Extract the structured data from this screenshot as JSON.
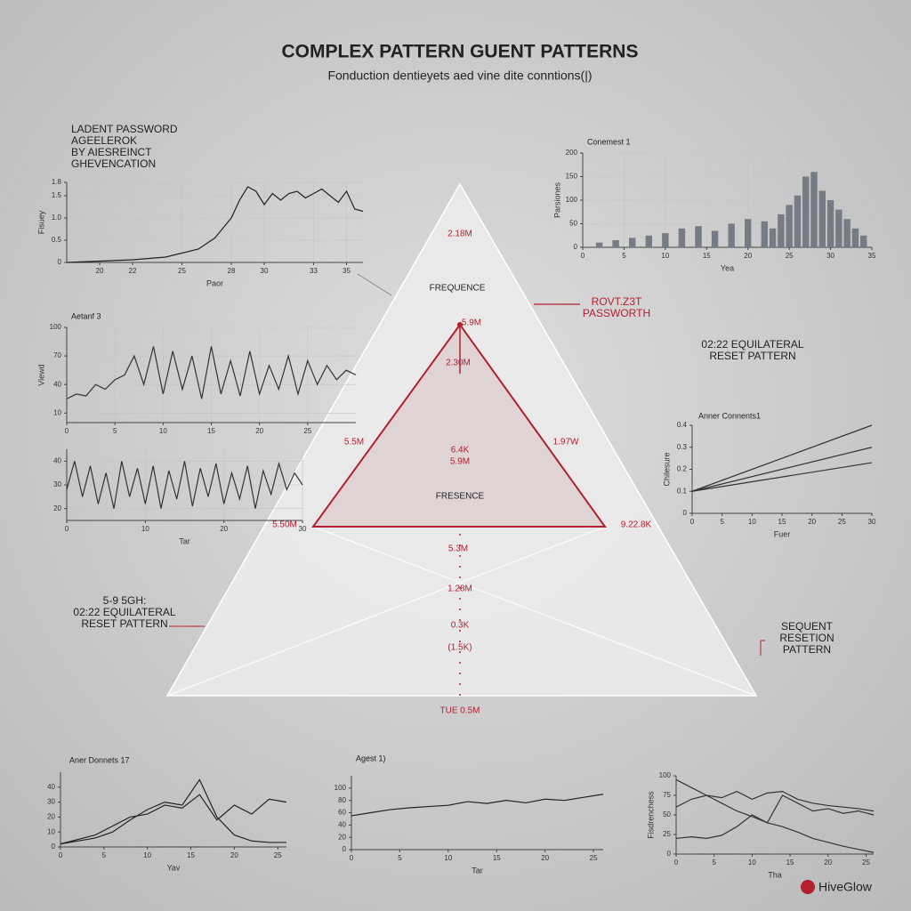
{
  "header": {
    "title": "COMPLEX PATTERN GUENT PATTERNS",
    "subtitle": "Fonduction dentieyets aed vine dite conntions(|)"
  },
  "chart_data": [
    {
      "type": "line",
      "title": [
        "LADENT PASSWORD",
        "AGEELEROK",
        "BY AIESREINCT",
        "GHEVENCATION"
      ],
      "x_label": "Paor",
      "y_label": "Fisuey",
      "x": [
        18,
        20,
        22,
        24,
        26,
        27,
        28,
        28.5,
        29,
        29.5,
        30,
        30.5,
        31,
        31.5,
        32,
        32.5,
        33,
        33.5,
        34,
        34.5,
        35,
        35.5,
        36
      ],
      "xlim": [
        18,
        36
      ],
      "xticks": [
        20,
        22,
        25,
        28,
        30,
        33,
        35
      ],
      "ylim": [
        0,
        1.8
      ],
      "yticks": [
        0,
        0.5,
        {
          "value": 1,
          "label": "1.0"
        },
        1.5,
        1.8
      ],
      "grid": true,
      "series": [
        {
          "color": "#222222",
          "values": [
            0,
            0.03,
            0.06,
            0.12,
            0.3,
            0.55,
            1,
            1.4,
            1.7,
            1.6,
            1.3,
            1.55,
            1.4,
            1.55,
            1.6,
            1.45,
            1.55,
            1.65,
            1.5,
            1.35,
            1.6,
            1.2,
            1.15
          ]
        }
      ]
    },
    {
      "type": "line",
      "title": "Aetanf 3",
      "y_label": "Viewd",
      "x": [
        0,
        1,
        2,
        3,
        4,
        5,
        6,
        7,
        8,
        9,
        10,
        11,
        12,
        13,
        14,
        15,
        16,
        17,
        18,
        19,
        20,
        21,
        22,
        23,
        24,
        25,
        26,
        27,
        28,
        29,
        30
      ],
      "xlim": [
        0,
        30
      ],
      "xticks": [
        0,
        5,
        10,
        15,
        20,
        25
      ],
      "ylim": [
        0,
        100
      ],
      "yticks": [
        10,
        40,
        70,
        100
      ],
      "grid": true,
      "series": [
        {
          "color": "#333333",
          "values": [
            25,
            30,
            28,
            40,
            35,
            45,
            50,
            70,
            40,
            80,
            30,
            75,
            35,
            70,
            25,
            80,
            30,
            65,
            28,
            75,
            30,
            60,
            35,
            70,
            30,
            65,
            40,
            60,
            45,
            55,
            50
          ]
        }
      ]
    },
    {
      "type": "line",
      "x_label": "Tar",
      "x": [
        0,
        1,
        2,
        3,
        4,
        5,
        6,
        7,
        8,
        9,
        10,
        11,
        12,
        13,
        14,
        15,
        16,
        17,
        18,
        19,
        20,
        21,
        22,
        23,
        24,
        25,
        26,
        27,
        28,
        29,
        30
      ],
      "xlim": [
        0,
        30
      ],
      "xticks": [
        0,
        10,
        20,
        30
      ],
      "ylim": [
        15,
        45
      ],
      "yticks": [
        20,
        30,
        40
      ],
      "grid": true,
      "series": [
        {
          "color": "#333333",
          "values": [
            28,
            40,
            25,
            38,
            22,
            35,
            20,
            40,
            25,
            37,
            22,
            38,
            20,
            36,
            24,
            40,
            21,
            37,
            25,
            39,
            22,
            35,
            24,
            38,
            20,
            36,
            26,
            39,
            28,
            35,
            30
          ]
        }
      ]
    },
    {
      "type": "bar",
      "title": "Conemest 1",
      "x_label": "Yea",
      "y_label": "Parsiones",
      "x": [
        2,
        4,
        6,
        8,
        10,
        12,
        14,
        16,
        18,
        20,
        22,
        23,
        24,
        25,
        26,
        27,
        28,
        29,
        30,
        31,
        32,
        33,
        34
      ],
      "xlim": [
        0,
        35
      ],
      "xticks": [
        0,
        5,
        10,
        15,
        20,
        25,
        30,
        35
      ],
      "ylim": [
        0,
        200
      ],
      "yticks": [
        0,
        50,
        100,
        150,
        200
      ],
      "grid": true,
      "series": [
        {
          "color": "#767b85",
          "values": [
            10,
            15,
            20,
            25,
            30,
            40,
            45,
            35,
            50,
            60,
            55,
            40,
            70,
            90,
            110,
            150,
            160,
            120,
            100,
            80,
            60,
            40,
            25
          ]
        }
      ]
    },
    {
      "type": "line",
      "title": "Anner Connents1",
      "x_label": "Fuer",
      "y_label": "Chilesure",
      "x": [
        0,
        30
      ],
      "xlim": [
        0,
        30
      ],
      "xticks": [
        0,
        5,
        10,
        15,
        20,
        25,
        30
      ],
      "ylim": [
        0,
        0.4
      ],
      "yticks": [
        0,
        0.1,
        0.2,
        0.3,
        0.4
      ],
      "grid": false,
      "series": [
        {
          "color": "#333333",
          "values": [
            0.1,
            0.4
          ]
        },
        {
          "color": "#333333",
          "values": [
            0.1,
            0.3
          ]
        },
        {
          "color": "#333333",
          "values": [
            0.1,
            0.23
          ]
        }
      ]
    },
    {
      "type": "line",
      "title": "Aner Donnets 17",
      "x_label": "Yav",
      "x": [
        0,
        2,
        4,
        6,
        8,
        10,
        12,
        14,
        16,
        18,
        20,
        22,
        24,
        26
      ],
      "xlim": [
        0,
        26
      ],
      "xticks": [
        0,
        5,
        10,
        15,
        20,
        25
      ],
      "ylim": [
        0,
        50
      ],
      "yticks": [
        0,
        10,
        20,
        30,
        40
      ],
      "grid": false,
      "series": [
        {
          "color": "#222222",
          "values": [
            2,
            4,
            6,
            10,
            18,
            25,
            30,
            28,
            45,
            20,
            8,
            4,
            3,
            3
          ]
        },
        {
          "color": "#222222",
          "values": [
            2,
            5,
            8,
            14,
            20,
            22,
            28,
            26,
            35,
            18,
            28,
            22,
            32,
            30
          ]
        }
      ]
    },
    {
      "type": "line",
      "title": "Agest 1)",
      "x_label": "Tar",
      "x": [
        0,
        2,
        4,
        6,
        8,
        10,
        12,
        14,
        16,
        18,
        20,
        22,
        24,
        26
      ],
      "xlim": [
        0,
        26
      ],
      "xticks": [
        0,
        5,
        10,
        15,
        20,
        25
      ],
      "ylim": [
        0,
        120
      ],
      "yticks": [
        0,
        20,
        40,
        60,
        80,
        100
      ],
      "grid": false,
      "series": [
        {
          "color": "#222222",
          "values": [
            55,
            60,
            65,
            68,
            70,
            72,
            78,
            75,
            80,
            76,
            82,
            80,
            85,
            90
          ]
        }
      ]
    },
    {
      "type": "line",
      "x_label": "Tha",
      "y_label": "Fisdrenchess",
      "x": [
        0,
        2,
        4,
        6,
        8,
        10,
        12,
        14,
        16,
        18,
        20,
        22,
        24,
        26
      ],
      "xlim": [
        0,
        26
      ],
      "xticks": [
        0,
        5,
        10,
        15,
        20,
        25
      ],
      "ylim": [
        0,
        100
      ],
      "yticks": [
        0,
        25,
        50,
        75,
        100
      ],
      "grid": false,
      "series": [
        {
          "color": "#333333",
          "values": [
            95,
            85,
            75,
            65,
            55,
            48,
            40,
            35,
            28,
            20,
            15,
            10,
            6,
            2
          ]
        },
        {
          "color": "#333333",
          "values": [
            60,
            70,
            75,
            72,
            80,
            70,
            78,
            80,
            70,
            65,
            62,
            60,
            58,
            55
          ]
        },
        {
          "color": "#333333",
          "values": [
            20,
            22,
            20,
            24,
            35,
            50,
            40,
            75,
            65,
            55,
            58,
            52,
            55,
            50
          ]
        }
      ]
    }
  ],
  "diagram": {
    "labels": [
      "2.18M",
      "FREQUENCE",
      "5.9M",
      "2.30M",
      "5.5M",
      "1.97W",
      "6.4K",
      "5.9M",
      "FRESENCE",
      "5.50M",
      "9.22.8K",
      "5.3M",
      "1.28M",
      "0.3K",
      "(1.5K)",
      "TUE 0.5M"
    ]
  },
  "callouts": {
    "top_right": [
      "ROVT.Z3T",
      "PASSWORTH"
    ],
    "right": [
      "02:22 EQUILATERAL",
      "RESET PATTERN"
    ],
    "left": [
      "5-9 5GH:",
      "02:22 EQUILATERAL",
      "RESET PATTERN"
    ],
    "bottom_right": [
      "SEQUENT",
      "RESETION",
      "PATTERN"
    ]
  },
  "brand": "HiveGlow"
}
